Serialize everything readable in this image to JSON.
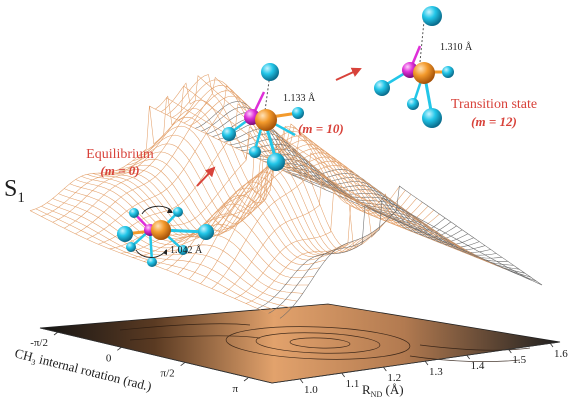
{
  "state_label": "S",
  "state_sub": "1",
  "states": [
    {
      "name": "Equilibrium",
      "m_label": "(m = 0)",
      "bond": "1.042 Å"
    },
    {
      "name": "",
      "m_label": "(m = 10)",
      "bond": "1.133 Å"
    },
    {
      "name": "Transition state",
      "m_label": "(m = 12)",
      "bond": "1.310 Å"
    }
  ],
  "x_axis": {
    "label": "R",
    "label_sub": "ND",
    "label_unit": " (Å)",
    "ticks": [
      "1.0",
      "1.1",
      "1.2",
      "1.3",
      "1.4",
      "1.5",
      "1.6"
    ]
  },
  "y_axis": {
    "label": "CH",
    "label_sub": "3",
    "label_rest": " internal rotation (rad.)",
    "ticks": [
      "-π/2",
      "0",
      "π/2",
      "π"
    ]
  },
  "colors": {
    "surface_mesh_warm": "#e3a06a",
    "surface_mesh_gray": "#6a6a6a",
    "arrow": "#d8423a",
    "atom_c": "#f39a2c",
    "atom_n": "#de2fd8",
    "atom_h": "#22c6e8"
  }
}
